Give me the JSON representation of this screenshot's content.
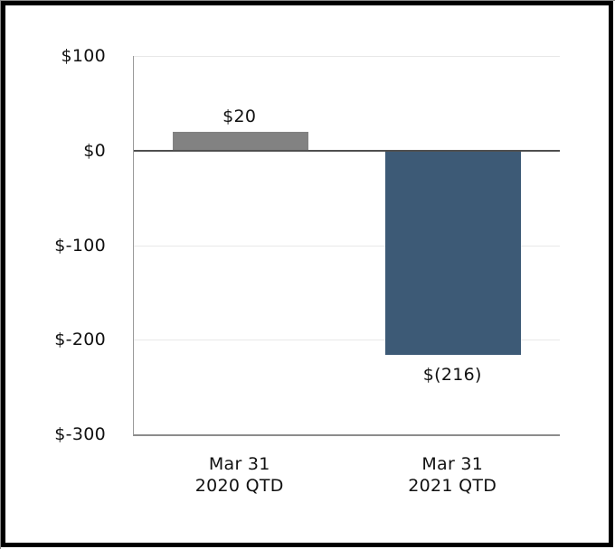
{
  "window": {
    "background": "#ffffff"
  },
  "colors": {
    "text": "#111111",
    "frame": "#000000",
    "grid": "#e8e8e8",
    "axis": "#9a9a9a",
    "axis_bottom": "#8c8c8c",
    "zero_line": "#4f4f4f"
  },
  "chart_data": {
    "type": "bar",
    "title": "",
    "xlabel": "",
    "ylabel": "",
    "categories": [
      [
        "Mar 31",
        "2020 QTD"
      ],
      [
        "Mar 31",
        "2021 QTD"
      ]
    ],
    "values": [
      20,
      -216
    ],
    "value_labels": [
      "$20",
      "$(216)"
    ],
    "bar_colors": [
      "#828282",
      "#3d5a76"
    ],
    "ylim": [
      -300,
      100
    ],
    "yticks": [
      100,
      0,
      -100,
      -200,
      -300
    ],
    "ytick_labels": [
      "$100",
      "$0",
      "$-100",
      "$-200",
      "$-300"
    ],
    "grid": true,
    "legend": false
  }
}
